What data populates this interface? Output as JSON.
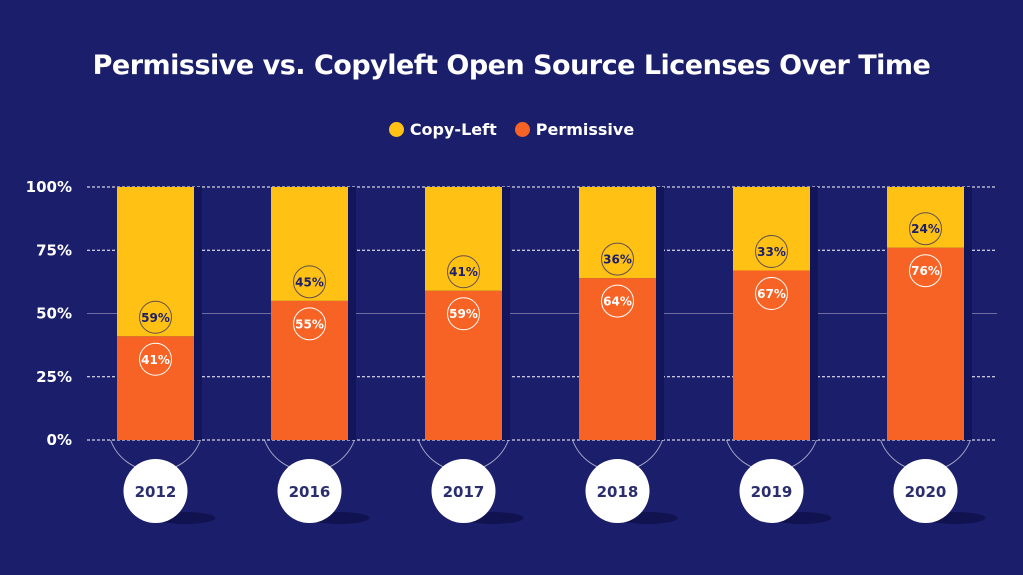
{
  "chart_data": {
    "type": "bar",
    "stacked": true,
    "title": "Permissive vs. Copyleft Open Source Licenses Over Time",
    "xlabel": "",
    "ylabel": "",
    "ylim": [
      0,
      100
    ],
    "yticks": [
      "0%",
      "25%",
      "50%",
      "75%",
      "100%"
    ],
    "ytick_values": [
      0,
      25,
      50,
      75,
      100
    ],
    "categories": [
      "2012",
      "2016",
      "2017",
      "2018",
      "2019",
      "2020"
    ],
    "series": [
      {
        "name": "Permissive",
        "color": "#f76324",
        "values": [
          41,
          55,
          59,
          64,
          67,
          76
        ],
        "labels": [
          "41%",
          "55%",
          "59%",
          "64%",
          "67%",
          "76%"
        ]
      },
      {
        "name": "Copy-Left",
        "color": "#ffc114",
        "values": [
          59,
          45,
          41,
          36,
          33,
          24
        ],
        "labels": [
          "59%",
          "45%",
          "41%",
          "36%",
          "33%",
          "24%"
        ]
      }
    ],
    "legend": [
      {
        "label": "Copy-Left",
        "color": "#ffc114"
      },
      {
        "label": "Permissive",
        "color": "#f76324"
      }
    ],
    "legend_position": "top-center",
    "grid": true
  },
  "colors": {
    "background": "#1b1f6b",
    "text": "#ffffff",
    "label_dark": "#1b1f6b"
  }
}
